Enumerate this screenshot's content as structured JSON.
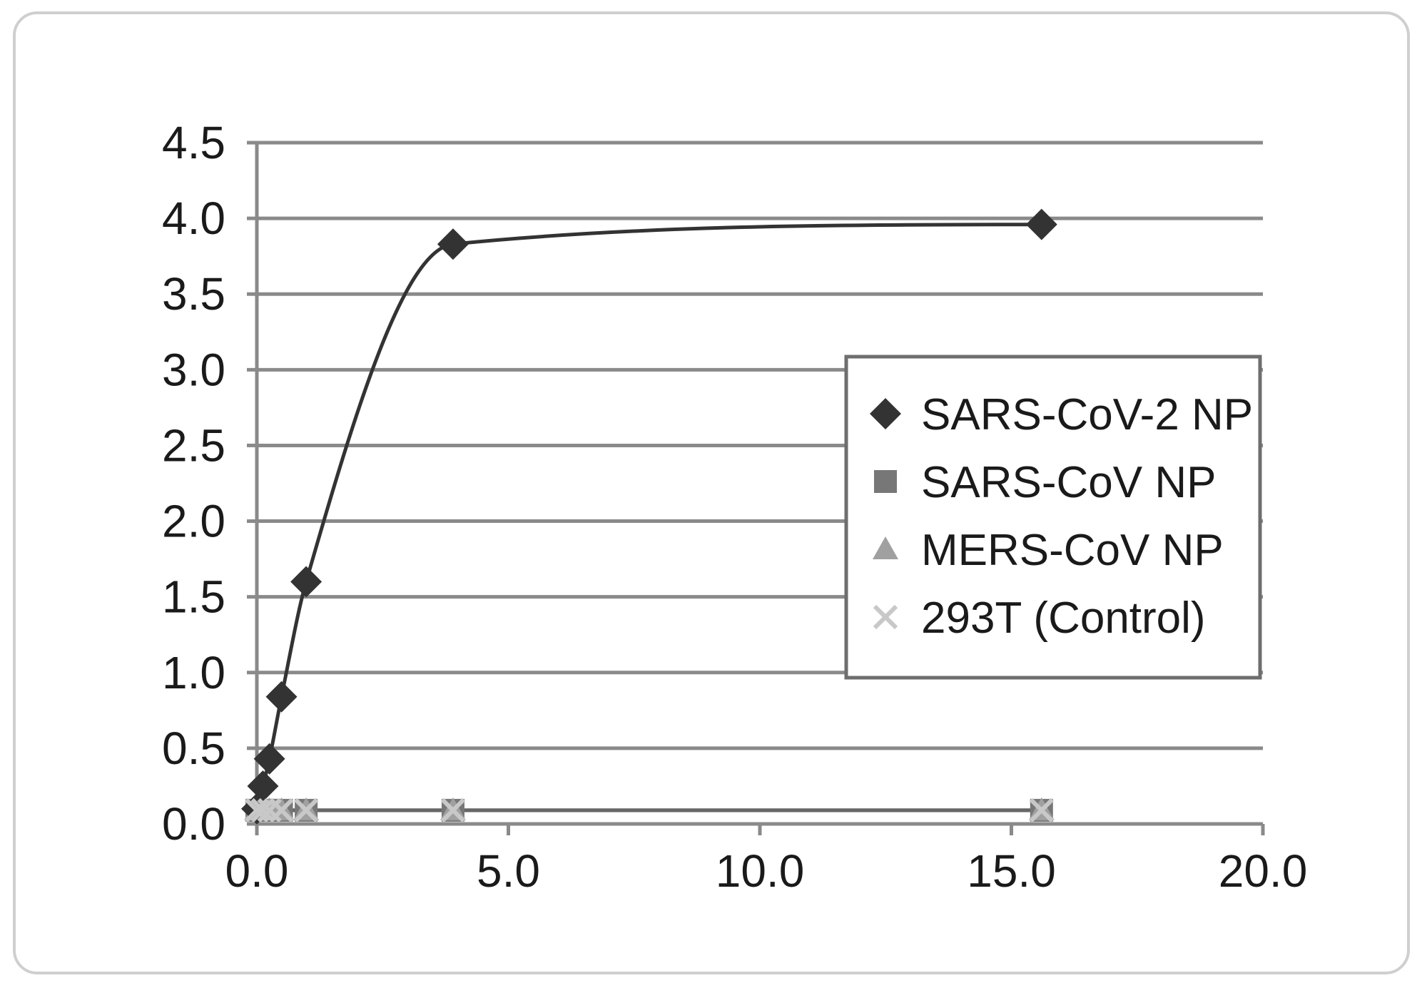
{
  "chart_data": {
    "type": "scatter",
    "title": "",
    "xlabel": "",
    "ylabel": "",
    "xlim": [
      0,
      20
    ],
    "ylim": [
      0,
      4.5
    ],
    "x_ticks": [
      "0.0",
      "5.0",
      "10.0",
      "15.0",
      "20.0"
    ],
    "y_ticks": [
      "0.0",
      "0.5",
      "1.0",
      "1.5",
      "2.0",
      "2.5",
      "3.0",
      "3.5",
      "4.0",
      "4.5"
    ],
    "grid": "horizontal",
    "legend_position": "right",
    "series": [
      {
        "name": "SARS-CoV-2 NP",
        "marker": "diamond",
        "color": "#333333",
        "smooth_line": true,
        "points": [
          [
            0.0,
            0.1
          ],
          [
            0.12,
            0.25
          ],
          [
            0.25,
            0.43
          ],
          [
            0.49,
            0.84
          ],
          [
            0.98,
            1.6
          ],
          [
            3.9,
            3.83
          ],
          [
            15.6,
            3.96
          ]
        ]
      },
      {
        "name": "SARS-CoV NP",
        "marker": "square",
        "color": "#777777",
        "smooth_line": true,
        "points": [
          [
            0.0,
            0.09
          ],
          [
            0.12,
            0.09
          ],
          [
            0.25,
            0.09
          ],
          [
            0.49,
            0.09
          ],
          [
            0.98,
            0.09
          ],
          [
            3.9,
            0.09
          ],
          [
            15.6,
            0.09
          ]
        ]
      },
      {
        "name": "MERS-CoV NP",
        "marker": "triangle",
        "color": "#a0a0a0",
        "smooth_line": true,
        "points": [
          [
            0.0,
            0.09
          ],
          [
            0.12,
            0.09
          ],
          [
            0.25,
            0.09
          ],
          [
            0.49,
            0.09
          ],
          [
            0.98,
            0.09
          ],
          [
            3.9,
            0.09
          ],
          [
            15.6,
            0.09
          ]
        ]
      },
      {
        "name": "293T (Control)",
        "marker": "x",
        "color": "#c8c8c8",
        "smooth_line": true,
        "points": [
          [
            0.0,
            0.09
          ],
          [
            0.12,
            0.09
          ],
          [
            0.25,
            0.09
          ],
          [
            0.49,
            0.09
          ],
          [
            0.98,
            0.09
          ],
          [
            3.9,
            0.09
          ],
          [
            15.6,
            0.09
          ]
        ]
      }
    ]
  }
}
